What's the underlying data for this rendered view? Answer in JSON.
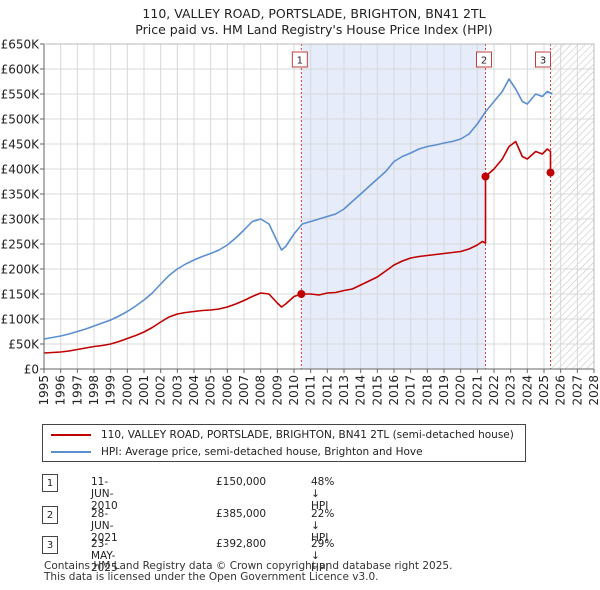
{
  "chart_data": {
    "type": "line",
    "title": "110, VALLEY ROAD, PORTSLADE, BRIGHTON, BN41 2TL",
    "subtitle": "Price paid vs. HM Land Registry's House Price Index (HPI)",
    "xlabel": "",
    "ylabel": "",
    "xlim": [
      1995,
      2028
    ],
    "ylim": [
      0,
      650000
    ],
    "y_ticks": [
      {
        "value": 0,
        "label": "£0"
      },
      {
        "value": 50000,
        "label": "£50K"
      },
      {
        "value": 100000,
        "label": "£100K"
      },
      {
        "value": 150000,
        "label": "£150K"
      },
      {
        "value": 200000,
        "label": "£200K"
      },
      {
        "value": 250000,
        "label": "£250K"
      },
      {
        "value": 300000,
        "label": "£300K"
      },
      {
        "value": 350000,
        "label": "£350K"
      },
      {
        "value": 400000,
        "label": "£400K"
      },
      {
        "value": 450000,
        "label": "£450K"
      },
      {
        "value": 500000,
        "label": "£500K"
      },
      {
        "value": 550000,
        "label": "£550K"
      },
      {
        "value": 600000,
        "label": "£600K"
      },
      {
        "value": 650000,
        "label": "£650K"
      }
    ],
    "x_ticks": [
      "1995",
      "1996",
      "1997",
      "1998",
      "1999",
      "2000",
      "2001",
      "2002",
      "2003",
      "2004",
      "2005",
      "2006",
      "2007",
      "2008",
      "2009",
      "2010",
      "2011",
      "2012",
      "2013",
      "2014",
      "2015",
      "2016",
      "2017",
      "2018",
      "2019",
      "2020",
      "2021",
      "2022",
      "2023",
      "2024",
      "2025",
      "2026",
      "2027",
      "2028"
    ],
    "grid": true,
    "shaded_region": [
      2010.44,
      2021.49
    ],
    "future_hatch_from": 2025.4,
    "series": [
      {
        "name": "110, VALLEY ROAD, PORTSLADE, BRIGHTON, BN41 2TL (semi-detached house)",
        "color": "#c00000",
        "x": [
          1995.0,
          1995.5,
          1996.0,
          1996.5,
          1997.0,
          1997.5,
          1998.0,
          1998.5,
          1999.0,
          1999.5,
          2000.0,
          2000.5,
          2001.0,
          2001.5,
          2002.0,
          2002.5,
          2003.0,
          2003.5,
          2004.0,
          2004.5,
          2005.0,
          2005.5,
          2006.0,
          2006.5,
          2007.0,
          2007.5,
          2008.0,
          2008.5,
          2009.0,
          2009.25,
          2009.5,
          2010.0,
          2010.44,
          2010.44,
          2011.0,
          2011.5,
          2012.0,
          2012.5,
          2013.0,
          2013.5,
          2014.0,
          2014.5,
          2015.0,
          2015.5,
          2016.0,
          2016.5,
          2017.0,
          2017.5,
          2018.0,
          2018.5,
          2019.0,
          2019.5,
          2020.0,
          2020.5,
          2021.0,
          2021.3,
          2021.49,
          2021.49,
          2022.0,
          2022.5,
          2022.9,
          2023.3,
          2023.7,
          2024.0,
          2024.5,
          2024.9,
          2025.2,
          2025.39,
          2025.39,
          2025.5
        ],
        "values": [
          32000,
          33000,
          34000,
          36000,
          39000,
          42000,
          45000,
          47000,
          50000,
          55000,
          61000,
          67000,
          74000,
          83000,
          94000,
          104000,
          110000,
          113000,
          115000,
          117000,
          118000,
          120000,
          124000,
          130000,
          137000,
          145000,
          152000,
          150000,
          132000,
          124000,
          130000,
          145000,
          150000,
          150000,
          150000,
          148000,
          152000,
          153000,
          157000,
          160000,
          168000,
          176000,
          184000,
          196000,
          208000,
          216000,
          222000,
          225000,
          227000,
          229000,
          231000,
          233000,
          235000,
          240000,
          248000,
          255000,
          252000,
          385000,
          400000,
          420000,
          445000,
          455000,
          425000,
          420000,
          435000,
          430000,
          440000,
          435000,
          392800,
          390000
        ]
      },
      {
        "name": "HPI: Average price, semi-detached house, Brighton and Hove",
        "color": "#5b8fd0",
        "x": [
          1995.0,
          1995.5,
          1996.0,
          1996.5,
          1997.0,
          1997.5,
          1998.0,
          1998.5,
          1999.0,
          1999.5,
          2000.0,
          2000.5,
          2001.0,
          2001.5,
          2002.0,
          2002.5,
          2003.0,
          2003.5,
          2004.0,
          2004.5,
          2005.0,
          2005.5,
          2006.0,
          2006.5,
          2007.0,
          2007.5,
          2008.0,
          2008.5,
          2009.0,
          2009.25,
          2009.5,
          2010.0,
          2010.5,
          2011.0,
          2011.5,
          2012.0,
          2012.5,
          2013.0,
          2013.5,
          2014.0,
          2014.5,
          2015.0,
          2015.5,
          2016.0,
          2016.5,
          2017.0,
          2017.5,
          2018.0,
          2018.5,
          2019.0,
          2019.5,
          2020.0,
          2020.5,
          2021.0,
          2021.5,
          2022.0,
          2022.5,
          2022.9,
          2023.3,
          2023.7,
          2024.0,
          2024.5,
          2024.9,
          2025.2,
          2025.5
        ],
        "values": [
          60000,
          63000,
          66000,
          70000,
          75000,
          80000,
          86000,
          92000,
          98000,
          106000,
          115000,
          126000,
          138000,
          152000,
          170000,
          187000,
          200000,
          210000,
          218000,
          225000,
          231000,
          238000,
          248000,
          262000,
          278000,
          295000,
          300000,
          290000,
          255000,
          238000,
          245000,
          270000,
          290000,
          295000,
          300000,
          305000,
          310000,
          320000,
          335000,
          350000,
          365000,
          380000,
          395000,
          415000,
          425000,
          432000,
          440000,
          445000,
          448000,
          452000,
          455000,
          460000,
          470000,
          490000,
          515000,
          535000,
          555000,
          580000,
          560000,
          535000,
          530000,
          550000,
          545000,
          555000,
          550000
        ]
      }
    ],
    "sale_markers": [
      {
        "label": "1",
        "x": 2010.44,
        "value": 150000
      },
      {
        "label": "2",
        "x": 2021.49,
        "value": 385000
      },
      {
        "label": "3",
        "x": 2025.39,
        "value": 392800
      }
    ]
  },
  "legend": {
    "items": [
      {
        "label": "110, VALLEY ROAD, PORTSLADE, BRIGHTON, BN41 2TL (semi-detached house)",
        "color": "#c00000"
      },
      {
        "label": "HPI: Average price, semi-detached house, Brighton and Hove",
        "color": "#5b8fd0"
      }
    ]
  },
  "transactions": [
    {
      "num": "1",
      "date": "11-JUN-2010",
      "price": "£150,000",
      "hpi": "48% ↓ HPI"
    },
    {
      "num": "2",
      "date": "28-JUN-2021",
      "price": "£385,000",
      "hpi": "22% ↓ HPI"
    },
    {
      "num": "3",
      "date": "23-MAY-2025",
      "price": "£392,800",
      "hpi": "29% ↓ HPI"
    }
  ],
  "footer": {
    "line1": "Contains HM Land Registry data © Crown copyright and database right 2025.",
    "line2": "This data is licensed under the Open Government Licence v3.0."
  }
}
